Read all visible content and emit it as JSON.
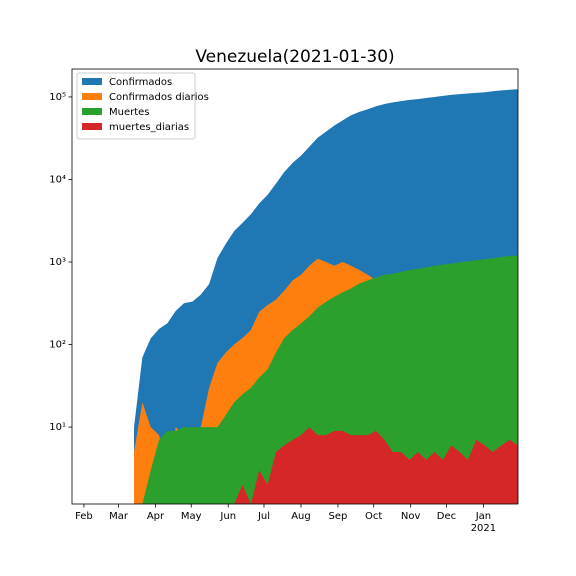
{
  "chart_data": {
    "type": "area",
    "title": "Venezuela(2021-01-30)",
    "log_y": true,
    "legend": "upper left",
    "x_year_label": "2021",
    "xlim": [
      "2020-01-22",
      "2021-01-30"
    ],
    "xticks": [
      {
        "value": "2020-02-01",
        "label": "Feb"
      },
      {
        "value": "2020-03-01",
        "label": "Mar"
      },
      {
        "value": "2020-04-01",
        "label": "Apr"
      },
      {
        "value": "2020-05-01",
        "label": "May"
      },
      {
        "value": "2020-06-01",
        "label": "Jun"
      },
      {
        "value": "2020-07-01",
        "label": "Jul"
      },
      {
        "value": "2020-08-01",
        "label": "Aug"
      },
      {
        "value": "2020-09-01",
        "label": "Sep"
      },
      {
        "value": "2020-10-01",
        "label": "Oct"
      },
      {
        "value": "2020-11-01",
        "label": "Nov"
      },
      {
        "value": "2020-12-01",
        "label": "Dec"
      },
      {
        "value": "2021-01-01",
        "label": "Jan"
      }
    ],
    "ylim": [
      1.17,
      218000
    ],
    "yticks": [
      {
        "value": 10,
        "label": "10¹"
      },
      {
        "value": 100,
        "label": "10²"
      },
      {
        "value": 1000,
        "label": "10³"
      },
      {
        "value": 10000,
        "label": "10⁴"
      },
      {
        "value": 100000,
        "label": "10⁵"
      }
    ],
    "x": [
      "2020-03-14",
      "2020-03-21",
      "2020-03-28",
      "2020-04-04",
      "2020-04-11",
      "2020-04-18",
      "2020-04-25",
      "2020-05-02",
      "2020-05-09",
      "2020-05-16",
      "2020-05-23",
      "2020-05-30",
      "2020-06-06",
      "2020-06-13",
      "2020-06-20",
      "2020-06-27",
      "2020-07-04",
      "2020-07-11",
      "2020-07-18",
      "2020-07-25",
      "2020-08-01",
      "2020-08-08",
      "2020-08-15",
      "2020-08-22",
      "2020-08-29",
      "2020-09-05",
      "2020-09-12",
      "2020-09-19",
      "2020-09-26",
      "2020-10-03",
      "2020-10-10",
      "2020-10-17",
      "2020-10-24",
      "2020-10-31",
      "2020-11-07",
      "2020-11-14",
      "2020-11-21",
      "2020-11-28",
      "2020-12-05",
      "2020-12-12",
      "2020-12-19",
      "2020-12-26",
      "2021-01-02",
      "2021-01-09",
      "2021-01-16",
      "2021-01-23",
      "2021-01-30"
    ],
    "series": [
      {
        "name": "Confirmados",
        "color": "#1f77b4",
        "values": [
          10,
          70,
          119,
          155,
          181,
          256,
          318,
          331,
          402,
          541,
          1121,
          1662,
          2377,
          2978,
          3789,
          5130,
          6500,
          8900,
          12300,
          15900,
          19400,
          24900,
          32000,
          38000,
          45000,
          52000,
          60000,
          66000,
          71000,
          77000,
          82000,
          86000,
          89000,
          92000,
          94000,
          97000,
          100000,
          103000,
          106000,
          108000,
          110000,
          112000,
          114000,
          117000,
          120000,
          122000,
          124000
        ]
      },
      {
        "name": "Confirmados diarios",
        "color": "#ff7f0e",
        "values": [
          5,
          20,
          10,
          8,
          3,
          10,
          8,
          3,
          10,
          30,
          60,
          80,
          100,
          120,
          150,
          250,
          300,
          350,
          450,
          600,
          700,
          900,
          1100,
          1000,
          900,
          1000,
          900,
          800,
          700,
          600,
          500,
          450,
          400,
          450,
          420,
          400,
          500,
          450,
          400,
          500,
          550,
          350,
          450,
          500,
          550,
          450,
          450
        ]
      },
      {
        "name": "Muertes",
        "color": "#2ca02c",
        "values": [
          0,
          0,
          3,
          7,
          9,
          9,
          10,
          10,
          10,
          10,
          10,
          14,
          20,
          25,
          30,
          40,
          50,
          80,
          120,
          150,
          180,
          220,
          280,
          330,
          380,
          430,
          480,
          550,
          600,
          650,
          700,
          720,
          760,
          800,
          830,
          860,
          900,
          930,
          960,
          990,
          1020,
          1050,
          1080,
          1110,
          1150,
          1180,
          1200
        ]
      },
      {
        "name": "muertes_diarias",
        "color": "#d62728",
        "values": [
          0,
          0,
          0,
          0,
          0,
          0,
          0,
          0,
          0,
          0,
          0,
          1,
          0,
          2,
          1,
          3,
          2,
          5,
          6,
          7,
          8,
          10,
          8,
          8,
          9,
          9,
          8,
          8,
          8,
          9,
          7,
          5,
          5,
          4,
          5,
          4,
          5,
          4,
          6,
          5,
          4,
          7,
          6,
          5,
          6,
          7,
          6
        ]
      }
    ]
  }
}
